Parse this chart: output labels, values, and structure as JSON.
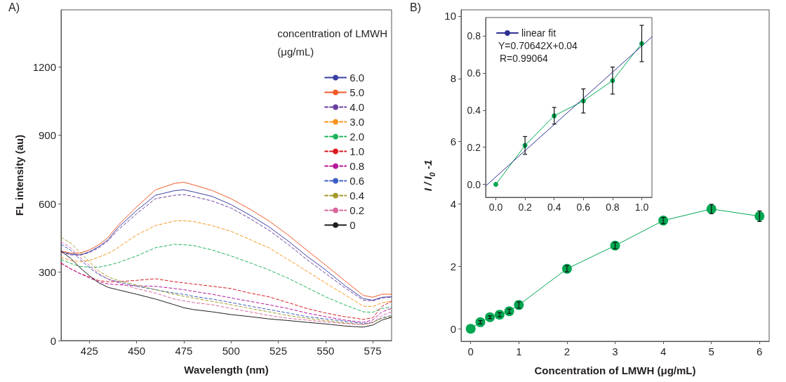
{
  "chart_data": [
    {
      "type": "line",
      "xlabel": "Wavelength (nm)",
      "ylabel": "FL intensity (au)",
      "legend_title": "concentration of LMWH\n(μg/mL)",
      "annotations": [
        "A)"
      ],
      "x": [
        410,
        415,
        420,
        425,
        430,
        435,
        440,
        450,
        460,
        470,
        475,
        480,
        490,
        500,
        510,
        520,
        530,
        540,
        550,
        560,
        570,
        575,
        580,
        585
      ],
      "xlim": [
        410,
        585
      ],
      "xticks": [
        425,
        450,
        475,
        500,
        525,
        550,
        575
      ],
      "ylim": [
        0,
        1450
      ],
      "yticks": [
        0,
        300,
        600,
        900,
        1200
      ],
      "grid": false,
      "legend": "top right",
      "marker": "none",
      "series": [
        {
          "name": "6.0",
          "color": "#3b3fa0",
          "line_style": "solid",
          "values": [
            392,
            379,
            376,
            389,
            412,
            443,
            494,
            570,
            637,
            657,
            661,
            652,
            632,
            596,
            550,
            499,
            438,
            371,
            310,
            243,
            184,
            177,
            190,
            192
          ]
        },
        {
          "name": "5.0",
          "color": "#f05a28",
          "line_style": "solid",
          "values": [
            392,
            384,
            384,
            397,
            420,
            453,
            504,
            586,
            661,
            689,
            694,
            683,
            658,
            622,
            576,
            525,
            464,
            397,
            331,
            264,
            198,
            190,
            203,
            203
          ]
        },
        {
          "name": "4.0",
          "color": "#6a3fa0",
          "line_style": "dashed",
          "values": [
            387,
            376,
            374,
            386,
            407,
            438,
            484,
            556,
            622,
            637,
            640,
            632,
            612,
            581,
            535,
            484,
            423,
            356,
            295,
            233,
            177,
            174,
            187,
            190
          ]
        },
        {
          "name": "3.0",
          "color": "#f7941d",
          "line_style": "dashed",
          "values": [
            366,
            351,
            346,
            351,
            366,
            382,
            407,
            463,
            504,
            524,
            526,
            522,
            504,
            479,
            443,
            407,
            356,
            305,
            253,
            202,
            151,
            149,
            166,
            172
          ]
        },
        {
          "name": "2.0",
          "color": "#1fb35b",
          "line_style": "dashed",
          "values": [
            356,
            338,
            325,
            322,
            322,
            330,
            341,
            371,
            407,
            422,
            420,
            417,
            397,
            371,
            341,
            310,
            274,
            233,
            192,
            157,
            126,
            124,
            141,
            146
          ]
        },
        {
          "name": "1.0",
          "color": "#d7191f",
          "line_style": "dashed",
          "values": [
            338,
            315,
            294,
            279,
            263,
            258,
            258,
            264,
            271,
            258,
            253,
            248,
            238,
            228,
            208,
            192,
            167,
            141,
            121,
            105,
            93,
            100,
            151,
            172
          ]
        },
        {
          "name": "0.8",
          "color": "#b5179e",
          "line_style": "dashed",
          "values": [
            341,
            315,
            294,
            274,
            258,
            248,
            245,
            240,
            238,
            228,
            223,
            216,
            203,
            187,
            172,
            157,
            141,
            121,
            105,
            90,
            80,
            90,
            126,
            141
          ]
        },
        {
          "name": "0.6",
          "color": "#3c5ec4",
          "line_style": "dashed",
          "values": [
            422,
            397,
            356,
            320,
            289,
            269,
            258,
            238,
            223,
            208,
            203,
            194,
            182,
            167,
            151,
            136,
            121,
            105,
            95,
            85,
            75,
            80,
            100,
            110
          ]
        },
        {
          "name": "0.4",
          "color": "#a39a2a",
          "line_style": "dashed",
          "values": [
            453,
            428,
            387,
            346,
            305,
            279,
            264,
            243,
            223,
            203,
            194,
            187,
            172,
            157,
            141,
            126,
            110,
            98,
            88,
            78,
            70,
            80,
            98,
            105
          ]
        },
        {
          "name": "0.2",
          "color": "#d9669e",
          "line_style": "dashed",
          "values": [
            433,
            407,
            366,
            330,
            294,
            269,
            254,
            228,
            208,
            182,
            174,
            167,
            157,
            141,
            126,
            110,
            98,
            90,
            82,
            75,
            70,
            78,
            110,
            126
          ]
        },
        {
          "name": "0",
          "color": "#231f20",
          "line_style": "solid",
          "values": [
            392,
            361,
            320,
            284,
            253,
            233,
            223,
            203,
            182,
            157,
            144,
            136,
            126,
            114,
            105,
            95,
            88,
            80,
            73,
            64,
            59,
            68,
            90,
            102
          ]
        }
      ]
    },
    {
      "type": "line",
      "xlabel": "Concentration of LMWH (μg/mL)",
      "ylabel": "I / I$_{0}$ -1",
      "annotations": [
        "B)"
      ],
      "x": [
        0,
        0.2,
        0.4,
        0.6,
        0.8,
        1,
        2,
        3,
        4,
        5,
        6
      ],
      "xlim": [
        -0.2,
        6.2
      ],
      "xticks": [
        0,
        1,
        2,
        3,
        4,
        5,
        6
      ],
      "ylim": [
        -0.4,
        10.2
      ],
      "yticks": [
        0,
        2,
        4,
        6,
        8,
        10
      ],
      "grid": false,
      "marker": "circle",
      "series": [
        {
          "color": "#00a651",
          "values": [
            0,
            0.21,
            0.37,
            0.45,
            0.56,
            0.76,
            1.92,
            2.66,
            3.46,
            3.83,
            3.6
          ],
          "errors": [
            null,
            0.05,
            0.045,
            0.065,
            0.07,
            0.1,
            0.1,
            0.1,
            0.1,
            0.15,
            0.17
          ]
        }
      ]
    },
    {
      "type": "line",
      "annotations": [
        "Y=0.70642X+0.04",
        "R=0.99064"
      ],
      "xlim": [
        -0.07,
        1.07
      ],
      "xticks": [
        {
          "value": 0,
          "label": "0.0"
        },
        0.2,
        0.4,
        0.6,
        0.8,
        {
          "value": 1,
          "label": "1.0"
        }
      ],
      "ylim": [
        -0.07,
        0.9
      ],
      "yticks": [
        {
          "value": 0,
          "label": "0.0"
        },
        0.2,
        0.4,
        0.6,
        0.8
      ],
      "grid": false,
      "legend": "top left",
      "marker": "circle",
      "series": [
        {
          "color": "#00a651",
          "x": [
            0,
            0.2,
            0.4,
            0.6,
            0.8,
            1
          ],
          "values": [
            0,
            0.21,
            0.37,
            0.45,
            0.56,
            0.76
          ],
          "errors": [
            null,
            0.048,
            0.045,
            0.065,
            0.073,
            0.098
          ]
        },
        {
          "name": "linear fit",
          "type": "line",
          "marker": "none",
          "color": "#2e3192",
          "x": [
            -0.07,
            1.07
          ],
          "values": [
            -0.009,
            0.796
          ]
        }
      ]
    }
  ]
}
